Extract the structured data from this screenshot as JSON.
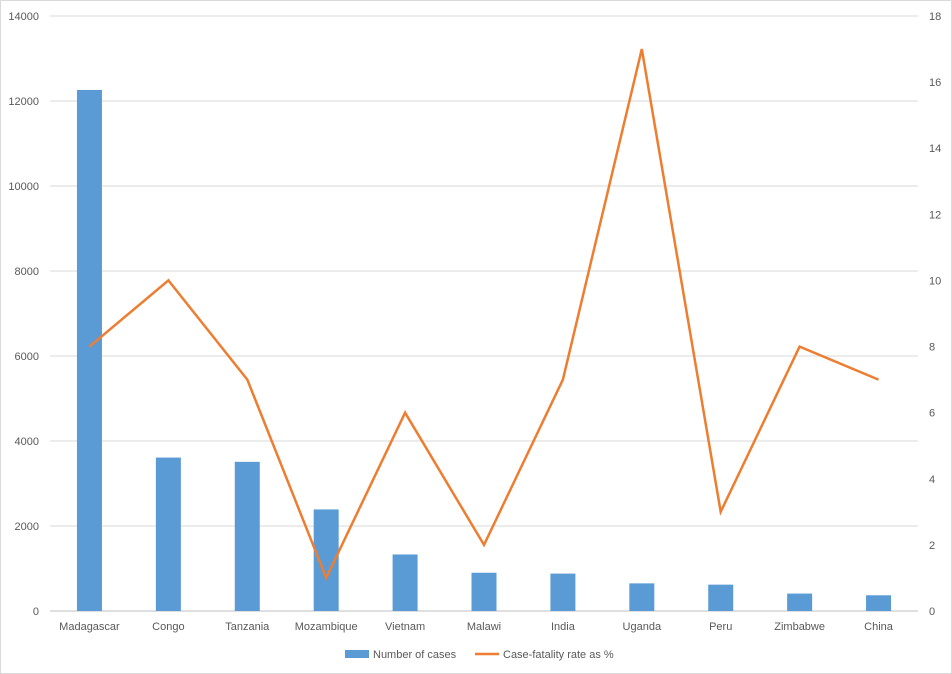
{
  "chart_data": {
    "type": "bar",
    "categories": [
      "Madagascar",
      "Congo",
      "Tanzania",
      "Mozambique",
      "Vietnam",
      "Malawi",
      "India",
      "Uganda",
      "Peru",
      "Zimbabwe",
      "China"
    ],
    "series": [
      {
        "name": "Number of cases",
        "type": "bar",
        "axis": "left",
        "color": "#5b9bd5",
        "values": [
          12260,
          3610,
          3510,
          2390,
          1330,
          900,
          880,
          650,
          620,
          410,
          370
        ]
      },
      {
        "name": "Case-fatality rate as %",
        "type": "line",
        "axis": "right",
        "color": "#ed7d31",
        "values": [
          8,
          10,
          7,
          1,
          6,
          2,
          7,
          17,
          3,
          8,
          7
        ]
      }
    ],
    "ylim_left": [
      0,
      14000
    ],
    "yticks_left": [
      "0",
      "2000",
      "4000",
      "6000",
      "8000",
      "10000",
      "12000",
      "14000"
    ],
    "ylim_right": [
      0,
      18
    ],
    "yticks_right": [
      "0",
      "2",
      "4",
      "6",
      "8",
      "10",
      "12",
      "14",
      "16",
      "18"
    ],
    "grid": true,
    "legend": "bottom"
  }
}
